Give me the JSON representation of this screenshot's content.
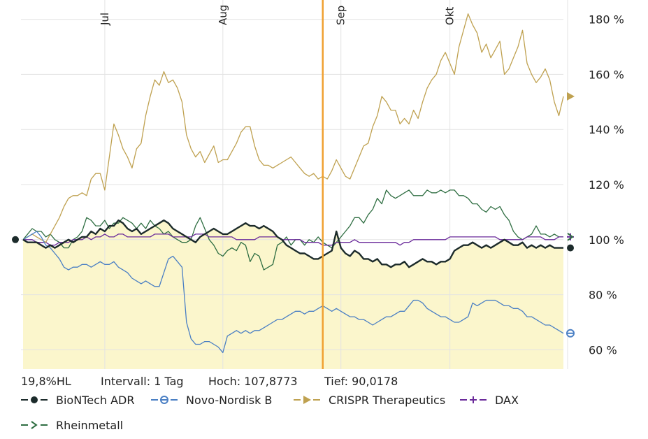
{
  "chart_data": {
    "type": "line",
    "y_unit": "%",
    "ylim": [
      53,
      187
    ],
    "yticks": [
      60,
      80,
      100,
      120,
      140,
      160,
      180
    ],
    "ytick_labels": [
      "60 %",
      "80 %",
      "100 %",
      "120 %",
      "140 %",
      "160 %",
      "180 %"
    ],
    "x_count": 120,
    "month_labels": [
      {
        "label": "Jul",
        "index": 18
      },
      {
        "label": "Aug",
        "index": 44
      },
      {
        "label": "Sep",
        "index": 70
      },
      {
        "label": "Okt",
        "index": 94
      }
    ],
    "marker_index": 66,
    "marker_color": "#f0a030",
    "grid": true,
    "fill_series": "BioNTech ADR",
    "fill_color": "#fbf6cc",
    "series": [
      {
        "name": "BioNTech ADR",
        "color": "#1c2b2b",
        "marker": "dot",
        "values": [
          100,
          99,
          99,
          99,
          98,
          97,
          98,
          97,
          98,
          99,
          100,
          99,
          100,
          101,
          101,
          103,
          102,
          104,
          103,
          105,
          105,
          107,
          106,
          104,
          103,
          104,
          102,
          103,
          104,
          105,
          106,
          107,
          106,
          104,
          103,
          102,
          101,
          100,
          99,
          101,
          102,
          103,
          104,
          103,
          102,
          102,
          103,
          104,
          105,
          106,
          105,
          105,
          104,
          105,
          104,
          103,
          101,
          100,
          98,
          97,
          96,
          95,
          95,
          94,
          93,
          93,
          94,
          95,
          96,
          103,
          97,
          95,
          94,
          96,
          95,
          93,
          93,
          92,
          93,
          91,
          91,
          90,
          91,
          91,
          92,
          90,
          91,
          92,
          93,
          92,
          92,
          91,
          92,
          92,
          93,
          96,
          97,
          98,
          98,
          99,
          98,
          97,
          98,
          97,
          98,
          99,
          100,
          99,
          98,
          98,
          99,
          97,
          98,
          97,
          98,
          97,
          98,
          97,
          97,
          97
        ]
      },
      {
        "name": "Novo-Nordisk B",
        "color": "#4a7fc4",
        "marker": "circle",
        "values": [
          100,
          101,
          102,
          103,
          101,
          98,
          97,
          95,
          93,
          90,
          89,
          90,
          90,
          91,
          91,
          90,
          91,
          92,
          91,
          91,
          92,
          90,
          89,
          88,
          86,
          85,
          84,
          85,
          84,
          83,
          83,
          88,
          93,
          94,
          92,
          90,
          70,
          64,
          62,
          62,
          63,
          63,
          62,
          61,
          59,
          65,
          66,
          67,
          66,
          67,
          66,
          67,
          67,
          68,
          69,
          70,
          71,
          71,
          72,
          73,
          74,
          74,
          73,
          74,
          74,
          75,
          76,
          75,
          74,
          75,
          74,
          73,
          72,
          72,
          71,
          71,
          70,
          69,
          70,
          71,
          72,
          72,
          73,
          74,
          74,
          76,
          78,
          78,
          77,
          75,
          74,
          73,
          72,
          72,
          71,
          70,
          70,
          71,
          72,
          77,
          76,
          77,
          78,
          78,
          78,
          77,
          76,
          76,
          75,
          75,
          74,
          72,
          72,
          71,
          70,
          69,
          69,
          68,
          67,
          66
        ]
      },
      {
        "name": "CRISPR Therapeutics",
        "color": "#bfa150",
        "marker": "triangle",
        "values": [
          100,
          101,
          102,
          101,
          100,
          99,
          102,
          105,
          108,
          112,
          115,
          116,
          116,
          117,
          116,
          122,
          124,
          124,
          118,
          130,
          142,
          138,
          133,
          130,
          126,
          133,
          135,
          145,
          152,
          158,
          156,
          161,
          157,
          158,
          155,
          150,
          138,
          133,
          130,
          132,
          128,
          131,
          134,
          128,
          129,
          129,
          132,
          135,
          139,
          141,
          141,
          134,
          129,
          127,
          127,
          126,
          127,
          128,
          129,
          130,
          128,
          126,
          124,
          123,
          124,
          122,
          123,
          122,
          125,
          129,
          126,
          123,
          122,
          126,
          130,
          134,
          135,
          141,
          145,
          152,
          150,
          147,
          147,
          142,
          144,
          142,
          147,
          144,
          150,
          155,
          158,
          160,
          165,
          168,
          164,
          160,
          170,
          176,
          182,
          178,
          175,
          168,
          171,
          166,
          169,
          172,
          160,
          162,
          166,
          170,
          176,
          164,
          160,
          157,
          159,
          162,
          158,
          150,
          145,
          152
        ]
      },
      {
        "name": "DAX",
        "color": "#6a2a9a",
        "marker": "plus",
        "values": [
          100,
          100,
          100,
          99,
          99,
          99,
          98,
          98,
          99,
          99,
          99,
          100,
          100,
          100,
          101,
          100,
          101,
          101,
          102,
          101,
          101,
          102,
          102,
          101,
          101,
          101,
          101,
          101,
          101,
          102,
          102,
          102,
          102,
          101,
          101,
          101,
          101,
          101,
          102,
          102,
          102,
          101,
          101,
          101,
          101,
          101,
          101,
          100,
          100,
          100,
          100,
          100,
          101,
          101,
          101,
          101,
          101,
          100,
          100,
          100,
          100,
          100,
          99,
          99,
          99,
          99,
          98,
          98,
          98,
          99,
          99,
          99,
          99,
          100,
          99,
          99,
          99,
          99,
          99,
          99,
          99,
          99,
          99,
          98,
          99,
          99,
          100,
          100,
          100,
          100,
          100,
          100,
          100,
          100,
          101,
          101,
          101,
          101,
          101,
          101,
          101,
          101,
          101,
          101,
          101,
          100,
          100,
          100,
          100,
          100,
          100,
          101,
          101,
          101,
          101,
          100,
          100,
          100,
          101,
          101
        ]
      },
      {
        "name": "Rheinmetall",
        "color": "#2f6e42",
        "marker": "arrow",
        "values": [
          100,
          102,
          104,
          103,
          103,
          101,
          102,
          100,
          99,
          97,
          97,
          100,
          101,
          103,
          108,
          107,
          105,
          105,
          107,
          104,
          106,
          106,
          108,
          107,
          106,
          104,
          106,
          104,
          107,
          105,
          104,
          102,
          103,
          101,
          100,
          99,
          99,
          100,
          105,
          108,
          104,
          100,
          98,
          95,
          94,
          96,
          97,
          96,
          99,
          98,
          92,
          95,
          94,
          89,
          90,
          91,
          98,
          99,
          101,
          98,
          100,
          100,
          98,
          100,
          99,
          101,
          99,
          98,
          97,
          99,
          101,
          103,
          105,
          108,
          108,
          106,
          109,
          111,
          115,
          113,
          118,
          116,
          115,
          116,
          117,
          118,
          116,
          116,
          116,
          118,
          117,
          117,
          118,
          117,
          118,
          118,
          116,
          116,
          115,
          113,
          113,
          111,
          110,
          112,
          111,
          112,
          109,
          107,
          103,
          101,
          100,
          101,
          102,
          105,
          102,
          102,
          101,
          102,
          101,
          101
        ]
      }
    ]
  },
  "footer": {
    "hl": "19,8%HL",
    "interval": "Intervall: 1 Tag",
    "high": "Hoch: 107,8773",
    "low": "Tief: 90,0178"
  },
  "legend": [
    {
      "label": "BioNTech ADR",
      "color": "#1c2b2b",
      "marker": "dot"
    },
    {
      "label": "Novo-Nordisk B",
      "color": "#4a7fc4",
      "marker": "circle"
    },
    {
      "label": "CRISPR Therapeutics",
      "color": "#bfa150",
      "marker": "triangle"
    },
    {
      "label": "DAX",
      "color": "#6a2a9a",
      "marker": "plus"
    },
    {
      "label": "Rheinmetall",
      "color": "#2f6e42",
      "marker": "arrow"
    }
  ]
}
